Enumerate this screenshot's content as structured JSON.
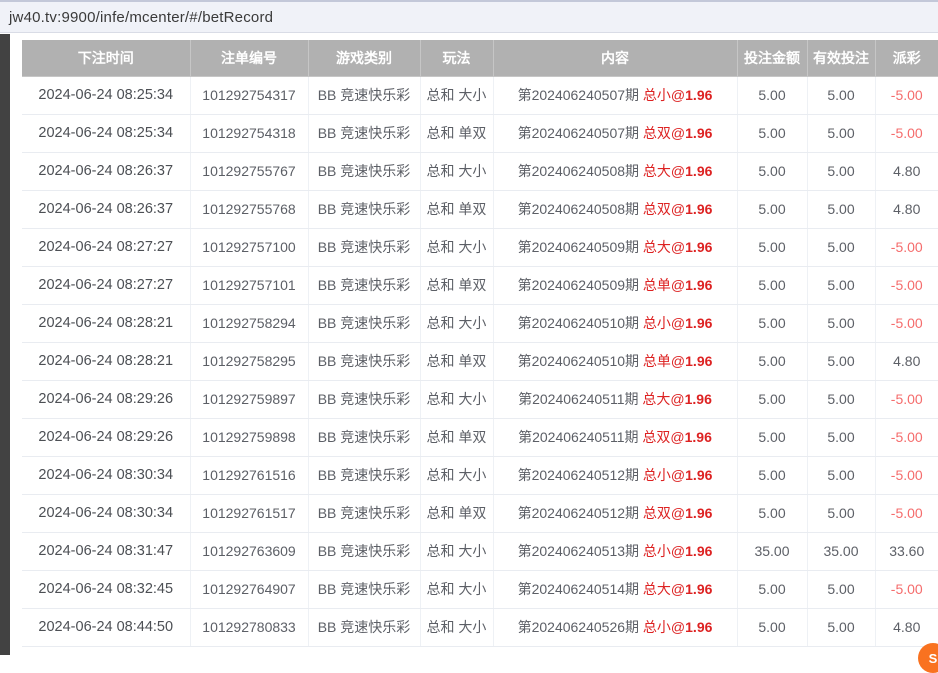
{
  "address_bar": {
    "url": "jw40.tv:9900/infe/mcenter/#/betRecord"
  },
  "colors": {
    "header_bg": "#b1b1b1",
    "bet_red": "#dd2222",
    "negative_payout_red": "#f56c6c",
    "cell_text": "#5c5f66",
    "floating_button_orange": "#f97220"
  },
  "table": {
    "columns": [
      "下注时间",
      "注单编号",
      "游戏类别",
      "玩法",
      "内容",
      "投注金额",
      "有效投注",
      "派彩"
    ],
    "rows": [
      {
        "time": "2024-06-24 08:25:34",
        "order_no": "101292754317",
        "category": "BB 竞速快乐彩",
        "play": "总和 大小",
        "period": "第202406240507期",
        "bet": "总小@",
        "odds": "1.96",
        "amount": "5.00",
        "valid": "5.00",
        "payout": "-5.00"
      },
      {
        "time": "2024-06-24 08:25:34",
        "order_no": "101292754318",
        "category": "BB 竞速快乐彩",
        "play": "总和 单双",
        "period": "第202406240507期",
        "bet": "总双@",
        "odds": "1.96",
        "amount": "5.00",
        "valid": "5.00",
        "payout": "-5.00"
      },
      {
        "time": "2024-06-24 08:26:37",
        "order_no": "101292755767",
        "category": "BB 竞速快乐彩",
        "play": "总和 大小",
        "period": "第202406240508期",
        "bet": "总大@",
        "odds": "1.96",
        "amount": "5.00",
        "valid": "5.00",
        "payout": "4.80"
      },
      {
        "time": "2024-06-24 08:26:37",
        "order_no": "101292755768",
        "category": "BB 竞速快乐彩",
        "play": "总和 单双",
        "period": "第202406240508期",
        "bet": "总双@",
        "odds": "1.96",
        "amount": "5.00",
        "valid": "5.00",
        "payout": "4.80"
      },
      {
        "time": "2024-06-24 08:27:27",
        "order_no": "101292757100",
        "category": "BB 竞速快乐彩",
        "play": "总和 大小",
        "period": "第202406240509期",
        "bet": "总大@",
        "odds": "1.96",
        "amount": "5.00",
        "valid": "5.00",
        "payout": "-5.00"
      },
      {
        "time": "2024-06-24 08:27:27",
        "order_no": "101292757101",
        "category": "BB 竞速快乐彩",
        "play": "总和 单双",
        "period": "第202406240509期",
        "bet": "总单@",
        "odds": "1.96",
        "amount": "5.00",
        "valid": "5.00",
        "payout": "-5.00"
      },
      {
        "time": "2024-06-24 08:28:21",
        "order_no": "101292758294",
        "category": "BB 竞速快乐彩",
        "play": "总和 大小",
        "period": "第202406240510期",
        "bet": "总小@",
        "odds": "1.96",
        "amount": "5.00",
        "valid": "5.00",
        "payout": "-5.00"
      },
      {
        "time": "2024-06-24 08:28:21",
        "order_no": "101292758295",
        "category": "BB 竞速快乐彩",
        "play": "总和 单双",
        "period": "第202406240510期",
        "bet": "总单@",
        "odds": "1.96",
        "amount": "5.00",
        "valid": "5.00",
        "payout": "4.80"
      },
      {
        "time": "2024-06-24 08:29:26",
        "order_no": "101292759897",
        "category": "BB 竞速快乐彩",
        "play": "总和 大小",
        "period": "第202406240511期",
        "bet": "总大@",
        "odds": "1.96",
        "amount": "5.00",
        "valid": "5.00",
        "payout": "-5.00"
      },
      {
        "time": "2024-06-24 08:29:26",
        "order_no": "101292759898",
        "category": "BB 竞速快乐彩",
        "play": "总和 单双",
        "period": "第202406240511期",
        "bet": "总双@",
        "odds": "1.96",
        "amount": "5.00",
        "valid": "5.00",
        "payout": "-5.00"
      },
      {
        "time": "2024-06-24 08:30:34",
        "order_no": "101292761516",
        "category": "BB 竞速快乐彩",
        "play": "总和 大小",
        "period": "第202406240512期",
        "bet": "总小@",
        "odds": "1.96",
        "amount": "5.00",
        "valid": "5.00",
        "payout": "-5.00"
      },
      {
        "time": "2024-06-24 08:30:34",
        "order_no": "101292761517",
        "category": "BB 竞速快乐彩",
        "play": "总和 单双",
        "period": "第202406240512期",
        "bet": "总双@",
        "odds": "1.96",
        "amount": "5.00",
        "valid": "5.00",
        "payout": "-5.00"
      },
      {
        "time": "2024-06-24 08:31:47",
        "order_no": "101292763609",
        "category": "BB 竞速快乐彩",
        "play": "总和 大小",
        "period": "第202406240513期",
        "bet": "总小@",
        "odds": "1.96",
        "amount": "35.00",
        "valid": "35.00",
        "payout": "33.60"
      },
      {
        "time": "2024-06-24 08:32:45",
        "order_no": "101292764907",
        "category": "BB 竞速快乐彩",
        "play": "总和 大小",
        "period": "第202406240514期",
        "bet": "总大@",
        "odds": "1.96",
        "amount": "5.00",
        "valid": "5.00",
        "payout": "-5.00"
      },
      {
        "time": "2024-06-24 08:44:50",
        "order_no": "101292780833",
        "category": "BB 竞速快乐彩",
        "play": "总和 大小",
        "period": "第202406240526期",
        "bet": "总小@",
        "odds": "1.96",
        "amount": "5.00",
        "valid": "5.00",
        "payout": "4.80"
      }
    ]
  },
  "floating_button": {
    "label": "S"
  }
}
